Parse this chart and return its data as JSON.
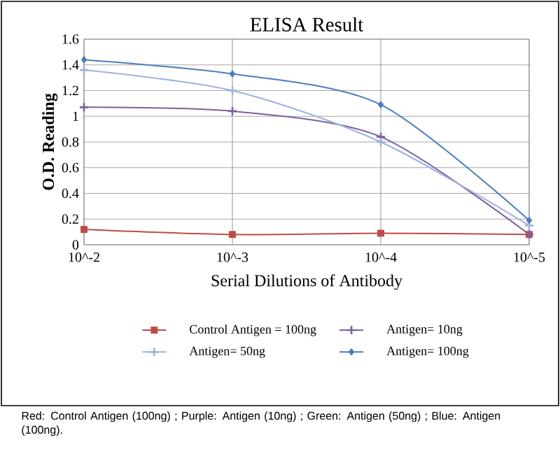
{
  "chart_data": {
    "type": "line",
    "title": "ELISA Result",
    "xlabel": "Serial Dilutions  of Antibody",
    "ylabel": "O.D. Reading",
    "categories": [
      "10^-2",
      "10^-3",
      "10^-4",
      "10^-5"
    ],
    "series": [
      {
        "name": "Control Antigen = 100ng",
        "color": "#be4b48",
        "marker": "square",
        "values": [
          0.12,
          0.08,
          0.09,
          0.08
        ]
      },
      {
        "name": "Antigen= 10ng",
        "color": "#7d60a0",
        "marker": "cross",
        "values": [
          1.07,
          1.04,
          0.84,
          0.08
        ]
      },
      {
        "name": "Antigen= 50ng",
        "color": "#9bb3de",
        "marker": "cross",
        "values": [
          1.36,
          1.2,
          0.8,
          0.15
        ]
      },
      {
        "name": "Antigen= 100ng",
        "color": "#4a7ebb",
        "marker": "diamond",
        "values": [
          1.44,
          1.33,
          1.09,
          0.19
        ]
      }
    ],
    "ylim": [
      0,
      1.6
    ],
    "yticks": [
      0,
      0.2,
      0.4,
      0.6,
      0.8,
      1,
      1.2,
      1.4,
      1.6
    ],
    "grid": true,
    "legend": "bottom",
    "annotations": [
      "Red: Control Antigen (100ng) ; Purple: Antigen (10ng) ; Green: Antigen (50ng) ; Blue: Antigen (100ng)."
    ]
  }
}
